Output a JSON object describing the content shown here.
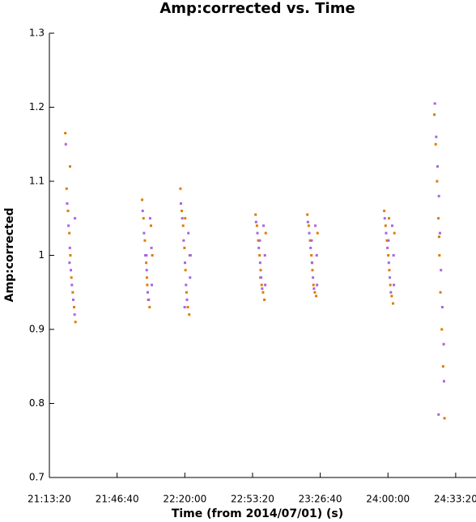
{
  "chart_data": {
    "type": "scatter",
    "title": "Amp:corrected vs. Time",
    "x_label": "Time (from 2014/07/01) (s)",
    "y_label": "Amp:corrected",
    "xlim": [
      76400,
      89000
    ],
    "ylim": [
      0.7,
      1.3
    ],
    "xticks": [
      {
        "value": 76400,
        "label": "21:13:20"
      },
      {
        "value": 78400,
        "label": "21:46:40"
      },
      {
        "value": 80400,
        "label": "22:20:00"
      },
      {
        "value": 82400,
        "label": "22:53:20"
      },
      {
        "value": 84400,
        "label": "23:26:40"
      },
      {
        "value": 86400,
        "label": "24:00:00"
      },
      {
        "value": 88400,
        "label": "24:33:20"
      }
    ],
    "yticks": [
      0.7,
      0.8,
      0.9,
      1,
      1.1,
      1.2,
      1.3
    ],
    "grid": false,
    "series": [
      {
        "color": "#e07b00",
        "x": [
          76870,
          76910,
          76950,
          76990,
          77020,
          77050,
          77090,
          77130,
          77170,
          77010,
          79140,
          79180,
          79220,
          79260,
          79290,
          79320,
          79360,
          79400,
          79440,
          79280,
          80270,
          80310,
          80350,
          80390,
          80420,
          80450,
          80490,
          80530,
          80570,
          80410,
          82490,
          82530,
          82570,
          82610,
          82640,
          82670,
          82710,
          82750,
          82790,
          82630,
          84020,
          84060,
          84100,
          84140,
          84170,
          84200,
          84240,
          84280,
          84320,
          84160,
          86290,
          86330,
          86370,
          86410,
          86440,
          86470,
          86510,
          86550,
          86590,
          86430,
          87770,
          87810,
          87850,
          87890,
          87920,
          87950,
          87990,
          88030,
          88070,
          87910
        ],
        "values": [
          1.165,
          1.09,
          1.06,
          1.03,
          1.0,
          0.97,
          0.95,
          0.93,
          0.91,
          1.12,
          1.075,
          1.05,
          1.02,
          0.99,
          0.96,
          0.94,
          0.93,
          1.04,
          1.0,
          0.97,
          1.09,
          1.06,
          1.04,
          1.01,
          0.98,
          0.95,
          0.93,
          0.92,
          1.0,
          1.05,
          1.055,
          1.04,
          1.02,
          1.0,
          0.98,
          0.96,
          0.95,
          0.94,
          1.03,
          0.97,
          1.055,
          1.04,
          1.02,
          1.0,
          0.98,
          0.96,
          0.95,
          0.945,
          1.03,
          0.99,
          1.06,
          1.04,
          1.02,
          1.0,
          0.98,
          0.96,
          0.945,
          0.935,
          1.03,
          1.05,
          1.19,
          1.15,
          1.1,
          1.05,
          1.0,
          0.95,
          0.9,
          0.85,
          0.78,
          1.025
        ]
      },
      {
        "color": "#a565e0",
        "x": [
          76885,
          76925,
          76965,
          77005,
          77035,
          77065,
          77105,
          77145,
          77155,
          76995,
          79155,
          79195,
          79235,
          79275,
          79305,
          79335,
          79375,
          79415,
          79425,
          79265,
          80285,
          80325,
          80365,
          80405,
          80435,
          80465,
          80505,
          80545,
          80555,
          80395,
          82505,
          82545,
          82585,
          82625,
          82655,
          82685,
          82725,
          82765,
          82775,
          82615,
          84035,
          84075,
          84115,
          84155,
          84185,
          84215,
          84255,
          84295,
          84305,
          84145,
          86305,
          86345,
          86385,
          86425,
          86455,
          86485,
          86525,
          86565,
          86575,
          86415,
          87785,
          87825,
          87865,
          87905,
          87935,
          87965,
          88005,
          88045,
          88055,
          87895
        ],
        "values": [
          1.15,
          1.07,
          1.04,
          1.01,
          0.98,
          0.96,
          0.94,
          0.92,
          1.05,
          0.99,
          1.06,
          1.03,
          1.0,
          0.98,
          0.95,
          0.94,
          1.05,
          1.01,
          0.96,
          1.0,
          1.07,
          1.05,
          1.02,
          0.99,
          0.96,
          0.94,
          1.03,
          1.0,
          0.97,
          0.93,
          1.045,
          1.03,
          1.01,
          0.99,
          0.97,
          0.955,
          1.04,
          1.0,
          0.96,
          1.02,
          1.045,
          1.03,
          1.01,
          0.99,
          0.97,
          0.955,
          1.04,
          1.0,
          0.96,
          1.02,
          1.05,
          1.03,
          1.01,
          0.99,
          0.97,
          0.95,
          1.04,
          1.0,
          0.96,
          1.02,
          1.205,
          1.16,
          1.12,
          1.08,
          1.03,
          0.98,
          0.93,
          0.88,
          0.83,
          0.785
        ]
      }
    ]
  }
}
